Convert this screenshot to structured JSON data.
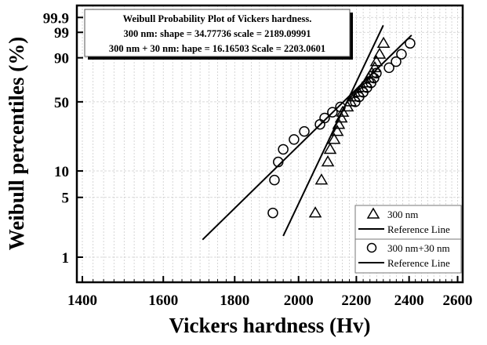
{
  "chart_data": {
    "type": "scatter",
    "title_lines": [
      "Weibull Probability Plot of Vickers hardness.",
      "300 nm: shape = 34.77736  scale = 2189.09991",
      "300 nm + 30 nm: hape = 16.16503  Scale = 2203.0601"
    ],
    "xlabel": "Vickers hardness (Hv)",
    "ylabel": "Weibull percentiles (%)",
    "x_scale": "log",
    "y_scale": "weibull",
    "xlim": [
      1387,
      2615
    ],
    "x_ticks": [
      1400,
      1600,
      1800,
      2000,
      2200,
      2400,
      2600
    ],
    "y_ticks": [
      1,
      5,
      10,
      50,
      90,
      99,
      99.9
    ],
    "y_tick_labels": [
      "1",
      "5",
      "10",
      "50",
      "90",
      "99",
      "99.9"
    ],
    "grid": true,
    "legend_placement": "bottom-right",
    "series": [
      {
        "name": "300 nm",
        "marker": "triangle",
        "x": [
          2056,
          2077,
          2099,
          2107,
          2121,
          2132,
          2137,
          2146,
          2151,
          2168,
          2179,
          2193,
          2208,
          2222,
          2236,
          2245,
          2257,
          2268,
          2274,
          2286,
          2301
        ],
        "y_percent": [
          3.3,
          7.9,
          12.6,
          17.3,
          22.0,
          26.6,
          31.3,
          36.0,
          40.7,
          45.3,
          50.0,
          54.7,
          59.3,
          64.0,
          68.7,
          73.4,
          78.0,
          82.7,
          87.4,
          92.1,
          96.7
        ],
        "reference_line": {
          "label": "Reference Line",
          "shape": 34.77736,
          "scale": 2189.09991,
          "x_range": [
            1950,
            2300
          ]
        }
      },
      {
        "name": "300 nm+30 nm",
        "marker": "circle",
        "x": [
          1917,
          1922,
          1934,
          1950,
          1985,
          2019,
          2072,
          2088,
          2115,
          2143,
          2196,
          2210,
          2225,
          2239,
          2254,
          2265,
          2274,
          2322,
          2349,
          2370,
          2404
        ],
        "y_percent": [
          3.3,
          7.9,
          12.6,
          17.3,
          22.0,
          26.6,
          31.3,
          36.0,
          40.7,
          45.3,
          50.0,
          54.7,
          59.3,
          64.0,
          68.7,
          73.4,
          78.0,
          82.7,
          87.4,
          92.1,
          96.7
        ],
        "reference_line": {
          "label": "Reference Line",
          "shape": 16.16503,
          "scale": 2203.0601,
          "x_range": [
            1707,
            2410
          ]
        }
      }
    ]
  }
}
